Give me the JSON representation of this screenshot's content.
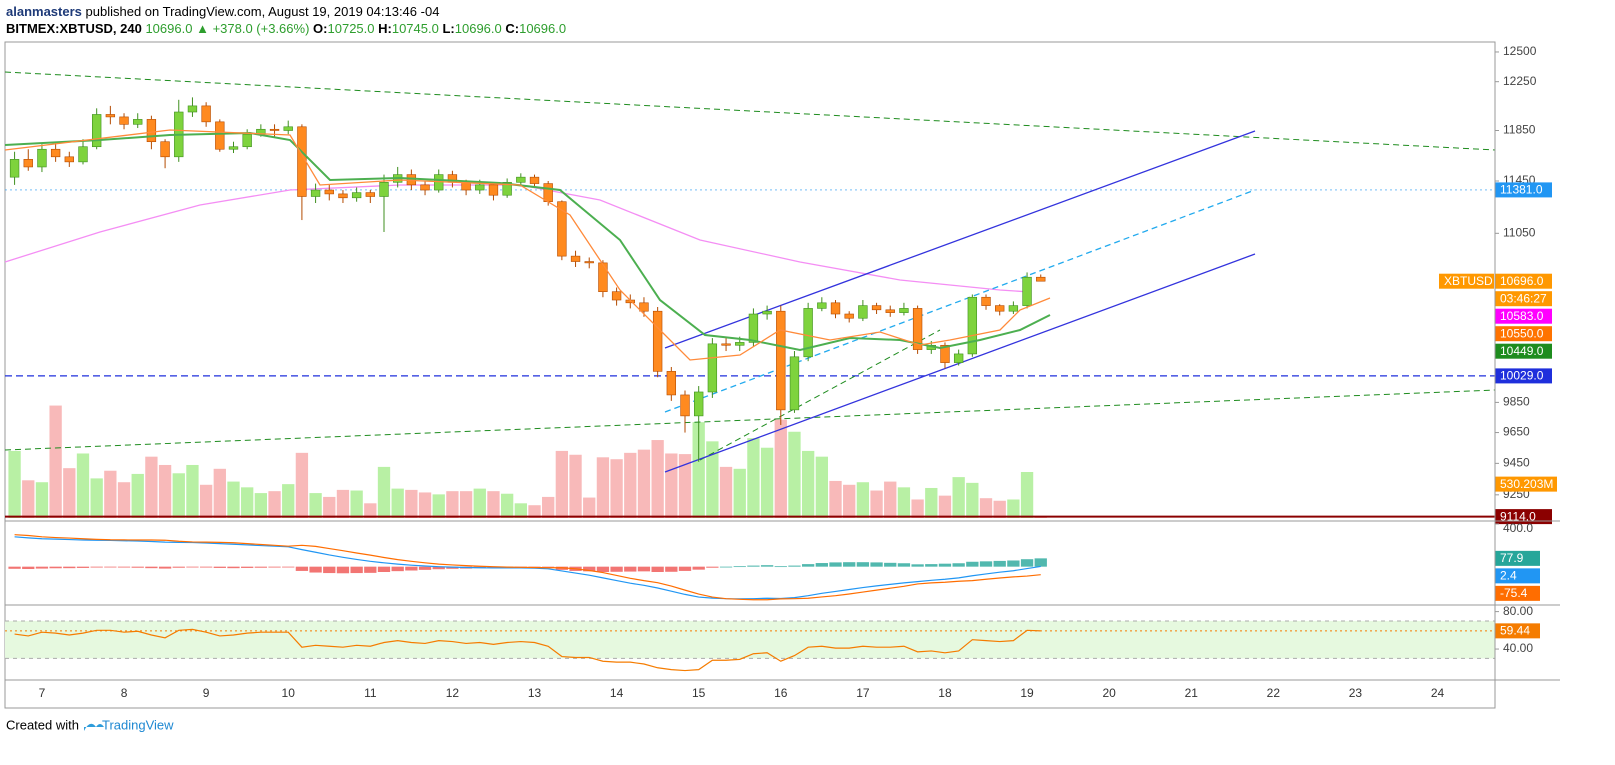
{
  "header": {
    "author": "alanmasters",
    "published": "published on TradingView.com, August 19, 2019 04:13:46 -04",
    "symbol": "BITMEX:XBTUSD, 240",
    "last": "10696.0",
    "arrow": "▲",
    "change": "+378.0 (+3.66%)",
    "ohlc": [
      {
        "key": "O:",
        "value": "10725.0"
      },
      {
        "key": "H:",
        "value": "10745.0"
      },
      {
        "key": "L:",
        "value": "10696.0"
      },
      {
        "key": "C:",
        "value": "10696.0"
      }
    ]
  },
  "footer": {
    "prefix": "Created with",
    "brand": "TradingView"
  },
  "chart_data": {
    "type": "candlestick",
    "log": true,
    "categories": [
      null,
      null,
      "7",
      null,
      null,
      null,
      null,
      null,
      "8",
      null,
      null,
      null,
      null,
      null,
      "9",
      null,
      null,
      null,
      null,
      null,
      "10",
      null,
      null,
      null,
      null,
      null,
      "11",
      null,
      null,
      null,
      null,
      null,
      "12",
      null,
      null,
      null,
      null,
      null,
      "13",
      null,
      null,
      null,
      null,
      null,
      "14",
      null,
      null,
      null,
      null,
      null,
      "15",
      null,
      null,
      null,
      null,
      null,
      "16",
      null,
      null,
      null,
      null,
      null,
      "17",
      null,
      null,
      null,
      null,
      null,
      "18",
      null,
      null,
      null,
      null,
      null,
      "19",
      null,
      null,
      null,
      null,
      null,
      "20",
      null,
      null,
      null,
      null,
      null,
      "21",
      null,
      null,
      null,
      null,
      null,
      "22",
      null,
      null,
      null,
      null,
      null,
      "23",
      null,
      null,
      null,
      null,
      null,
      "24"
    ],
    "open": [
      11480,
      11620,
      11560,
      11700,
      11640,
      11600,
      11720,
      11980,
      11960,
      11900,
      11940,
      11760,
      11640,
      12000,
      12050,
      11920,
      11700,
      11720,
      11820,
      11860,
      11850,
      11880,
      11330,
      11380,
      11350,
      11320,
      11360,
      11330,
      11440,
      11500,
      11420,
      11380,
      11500,
      11440,
      11380,
      11420,
      11340,
      11440,
      11480,
      11430,
      11290,
      10880,
      10840,
      10830,
      10620,
      10560,
      10540,
      10480,
      10060,
      9900,
      9760,
      9920,
      10250,
      10240,
      10260,
      10460,
      10480,
      9800,
      10160,
      10500,
      10540,
      10460,
      10430,
      10520,
      10490,
      10470,
      10500,
      10210,
      10240,
      10120,
      10180,
      10580,
      10520,
      10480,
      10520,
      10725,
      null,
      null,
      null,
      null,
      null,
      null,
      null,
      null,
      null,
      null,
      null,
      null,
      null,
      null,
      null,
      null,
      null,
      null,
      null,
      null,
      null,
      null,
      null,
      null,
      null,
      null,
      null,
      null,
      null
    ],
    "high": [
      11680,
      11700,
      11740,
      11760,
      11680,
      11780,
      12030,
      12050,
      11990,
      11990,
      11970,
      11780,
      12100,
      12120,
      12080,
      11940,
      11760,
      11860,
      11900,
      11900,
      11930,
      11900,
      11430,
      11420,
      11380,
      11400,
      11380,
      11500,
      11560,
      11540,
      11450,
      11540,
      11530,
      11460,
      11460,
      11440,
      11470,
      11510,
      11500,
      11450,
      11300,
      10920,
      10870,
      10850,
      10650,
      10600,
      10580,
      10510,
      10090,
      9930,
      9960,
      10290,
      10290,
      10300,
      10500,
      10520,
      10520,
      10200,
      10540,
      10580,
      10560,
      10480,
      10560,
      10540,
      10520,
      10540,
      10520,
      10270,
      10260,
      10210,
      10600,
      10600,
      10530,
      10550,
      10760,
      10745,
      null,
      null,
      null,
      null,
      null,
      null,
      null,
      null,
      null,
      null,
      null,
      null,
      null,
      null,
      null,
      null,
      null,
      null,
      null,
      null,
      null,
      null,
      null,
      null,
      null,
      null,
      null,
      null,
      null
    ],
    "low": [
      11420,
      11530,
      11520,
      11600,
      11560,
      11580,
      11700,
      11900,
      11860,
      11870,
      11700,
      11550,
      11600,
      11960,
      11880,
      11680,
      11670,
      11700,
      11800,
      11790,
      11820,
      11150,
      11280,
      11300,
      11280,
      11290,
      11280,
      11060,
      11400,
      11380,
      11340,
      11360,
      11400,
      11340,
      11350,
      11300,
      11320,
      11420,
      11400,
      11260,
      10850,
      10800,
      10790,
      10580,
      10520,
      10500,
      10440,
      10020,
      9860,
      9650,
      9460,
      9880,
      10200,
      10200,
      10230,
      10420,
      9700,
      9780,
      10130,
      10480,
      10430,
      10400,
      10410,
      10460,
      10440,
      10450,
      10180,
      10180,
      10080,
      10100,
      10160,
      10490,
      10450,
      10460,
      10500,
      10696,
      null,
      null,
      null,
      null,
      null,
      null,
      null,
      null,
      null,
      null,
      null,
      null,
      null,
      null,
      null,
      null,
      null,
      null,
      null,
      null,
      null,
      null,
      null,
      null,
      null,
      null,
      null,
      null,
      null
    ],
    "close": [
      11620,
      11560,
      11700,
      11640,
      11600,
      11720,
      11980,
      11960,
      11900,
      11940,
      11760,
      11640,
      12000,
      12050,
      11920,
      11700,
      11720,
      11820,
      11860,
      11850,
      11880,
      11330,
      11380,
      11350,
      11320,
      11360,
      11330,
      11440,
      11500,
      11420,
      11380,
      11500,
      11440,
      11380,
      11420,
      11340,
      11440,
      11480,
      11430,
      11290,
      10880,
      10840,
      10830,
      10620,
      10560,
      10540,
      10480,
      10060,
      9900,
      9760,
      9920,
      10250,
      10240,
      10260,
      10460,
      10480,
      9800,
      10160,
      10500,
      10540,
      10460,
      10430,
      10520,
      10490,
      10470,
      10500,
      10210,
      10240,
      10120,
      10180,
      10580,
      10520,
      10480,
      10520,
      10725,
      10696,
      null,
      null,
      null,
      null,
      null,
      null,
      null,
      null,
      null,
      null,
      null,
      null,
      null,
      null,
      null,
      null,
      null,
      null,
      null,
      null,
      null,
      null,
      null,
      null,
      null,
      null,
      null,
      null,
      null
    ],
    "up_color": "#7ed33d",
    "down_color": "#ff8a1f",
    "ylim": [
      9093,
      12585
    ],
    "yticks": [
      12500,
      12250,
      11850,
      11450,
      11050,
      9850,
      9650,
      9450,
      9250
    ],
    "symbol_tag": "XBTUSD",
    "countdown": "03:46:27",
    "price_tags": [
      {
        "value": 11381,
        "label": "11381.0",
        "color": "#2196f3",
        "line": "dotted"
      },
      {
        "value": 10696,
        "label": "10696.0",
        "color": "#ff9800"
      },
      {
        "value": 10583,
        "label": "10583.0",
        "color": "#ff00ff"
      },
      {
        "value": 10550,
        "label": "10550.0",
        "color": "#ff7300"
      },
      {
        "value": 10449,
        "label": "10449.0",
        "color": "#1e8c1e"
      },
      {
        "value": 10029,
        "label": "10029.0",
        "color": "#1f2fdc",
        "line": "dashed"
      },
      {
        "value": 9114,
        "label": "9114.0",
        "color": "#8b0000",
        "line": "solid"
      }
    ],
    "volume": {
      "values": [
        1050,
        590,
        560,
        1760,
        780,
        1010,
        620,
        740,
        560,
        690,
        960,
        830,
        700,
        830,
        520,
        770,
        570,
        480,
        390,
        420,
        530,
        1020,
        390,
        330,
        440,
        430,
        230,
        800,
        460,
        440,
        400,
        370,
        420,
        420,
        460,
        420,
        380,
        230,
        200,
        330,
        1050,
        990,
        320,
        950,
        920,
        1020,
        1070,
        1220,
        1010,
        1000,
        1500,
        1200,
        800,
        770,
        1250,
        1100,
        1540,
        1350,
        1050,
        960,
        580,
        520,
        560,
        430,
        570,
        480,
        290,
        470,
        350,
        640,
        550,
        310,
        270,
        290,
        720,
        30
      ],
      "ylim": [
        0,
        1800
      ],
      "up_color": "#b8f0a4",
      "down_color": "#f8b9b9",
      "tag": {
        "value": 530.203,
        "label": "530.203M",
        "color": "#ff9800"
      }
    },
    "macd": {
      "ylim": [
        -350,
        400
      ],
      "yticks": [
        {
          "value": 400,
          "label": "400.0"
        }
      ],
      "macd": {
        "color": "#2196f3",
        "values": [
          280,
          270,
          262,
          258,
          254,
          250,
          248,
          246,
          243,
          240,
          236,
          230,
          228,
          226,
          222,
          216,
          210,
          204,
          198,
          192,
          186,
          160,
          135,
          110,
          88,
          68,
          50,
          36,
          24,
          14,
          6,
          0,
          -4,
          -8,
          -10,
          -12,
          -12,
          -12,
          -14,
          -20,
          -40,
          -60,
          -80,
          -105,
          -130,
          -155,
          -175,
          -200,
          -230,
          -260,
          -285,
          -295,
          -300,
          -302,
          -300,
          -296,
          -298,
          -290,
          -272,
          -250,
          -232,
          -214,
          -196,
          -180,
          -166,
          -152,
          -140,
          -128,
          -118,
          -105,
          -85,
          -68,
          -52,
          -38,
          -18,
          2.4
        ]
      },
      "signal": {
        "color": "#ff6d00",
        "values": [
          300,
          292,
          280,
          273,
          268,
          262,
          256,
          252,
          251,
          250,
          250,
          248,
          238,
          232,
          230,
          228,
          224,
          216,
          208,
          200,
          192,
          200,
          190,
          170,
          150,
          128,
          108,
          86,
          66,
          50,
          36,
          24,
          16,
          10,
          4,
          0,
          -4,
          -6,
          -8,
          -10,
          -10,
          -20,
          -36,
          -55,
          -82,
          -109,
          -131,
          -150,
          -182,
          -220,
          -257,
          -285,
          -300,
          -306,
          -310,
          -310,
          -302,
          -300,
          -296,
          -284,
          -272,
          -256,
          -238,
          -220,
          -202,
          -184,
          -162,
          -152,
          -146,
          -137,
          -131,
          -118,
          -106,
          -96,
          -88,
          -75.4
        ]
      },
      "histogram": {
        "up_color": "#26a69a",
        "down_color": "#ef5350",
        "values": [
          -20,
          -22,
          -18,
          -15,
          -14,
          -12,
          -8,
          -6,
          -8,
          -10,
          -14,
          -18,
          -10,
          -6,
          -8,
          -12,
          -14,
          -12,
          -10,
          -8,
          -6,
          -40,
          -55,
          -60,
          -62,
          -60,
          -58,
          -50,
          -42,
          -36,
          -30,
          -24,
          -20,
          -18,
          -14,
          -12,
          -8,
          -6,
          -6,
          -10,
          -30,
          -40,
          -44,
          -50,
          -48,
          -46,
          -44,
          -50,
          -48,
          -40,
          -28,
          -10,
          0,
          4,
          10,
          14,
          4,
          10,
          24,
          34,
          40,
          42,
          42,
          40,
          36,
          32,
          22,
          24,
          28,
          32,
          46,
          50,
          54,
          58,
          70,
          77.9
        ]
      }
    },
    "rsi": {
      "color": "#f57c00",
      "ylim": [
        8,
        86
      ],
      "yticks": [
        {
          "value": 80,
          "label": "80.00"
        },
        {
          "value": 40,
          "label": "40.00"
        }
      ],
      "band": [
        70,
        30
      ],
      "values": [
        56,
        54,
        58,
        57,
        55,
        57,
        60,
        60,
        58,
        59,
        55,
        52,
        60,
        61,
        58,
        54,
        55,
        57,
        58,
        58,
        58,
        42,
        44,
        43,
        42,
        44,
        43,
        47,
        49,
        47,
        46,
        49,
        48,
        46,
        47,
        45,
        47,
        48,
        47,
        43,
        32,
        31,
        31,
        27,
        26,
        26,
        24,
        20,
        18,
        17,
        18,
        28,
        28,
        29,
        35,
        36,
        27,
        33,
        42,
        43,
        41,
        41,
        43,
        42,
        42,
        43,
        37,
        38,
        36,
        38,
        50,
        49,
        48,
        49,
        60,
        59.44
      ]
    }
  }
}
